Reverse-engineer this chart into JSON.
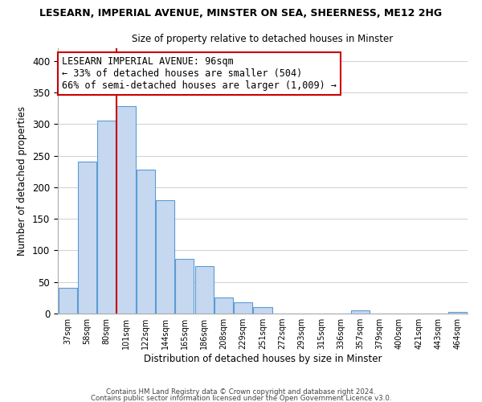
{
  "title1": "LESEARN, IMPERIAL AVENUE, MINSTER ON SEA, SHEERNESS, ME12 2HG",
  "title2": "Size of property relative to detached houses in Minster",
  "xlabel": "Distribution of detached houses by size in Minster",
  "ylabel": "Number of detached properties",
  "bar_labels": [
    "37sqm",
    "58sqm",
    "80sqm",
    "101sqm",
    "122sqm",
    "144sqm",
    "165sqm",
    "186sqm",
    "208sqm",
    "229sqm",
    "251sqm",
    "272sqm",
    "293sqm",
    "315sqm",
    "336sqm",
    "357sqm",
    "379sqm",
    "400sqm",
    "421sqm",
    "443sqm",
    "464sqm"
  ],
  "bar_values": [
    41,
    241,
    306,
    328,
    228,
    180,
    87,
    75,
    25,
    18,
    10,
    0,
    0,
    0,
    0,
    5,
    0,
    0,
    0,
    0,
    2
  ],
  "bar_color": "#c5d8f0",
  "bar_edge_color": "#5b9bd5",
  "annotation_line1": "LESEARN IMPERIAL AVENUE: 96sqm",
  "annotation_line2": "← 33% of detached houses are smaller (504)",
  "annotation_line3": "66% of semi-detached houses are larger (1,009) →",
  "line_color": "#cc0000",
  "footer1": "Contains HM Land Registry data © Crown copyright and database right 2024.",
  "footer2": "Contains public sector information licensed under the Open Government Licence v3.0.",
  "ylim": [
    0,
    420
  ],
  "background_color": "#ffffff",
  "grid_color": "#d0d0d0"
}
